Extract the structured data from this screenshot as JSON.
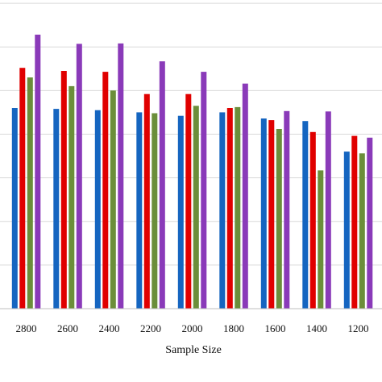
{
  "chart_data": {
    "type": "bar",
    "title": "",
    "xlabel": "Sample Size",
    "ylabel": "",
    "ylim": [
      0,
      7.5
    ],
    "grid": true,
    "legend": "none",
    "categories": [
      "2800",
      "2600",
      "2400",
      "2200",
      "2000",
      "1800",
      "1600",
      "1400",
      "1200"
    ],
    "series": [
      {
        "color": "#1565c0",
        "values": [
          4.6,
          4.58,
          4.55,
          4.5,
          4.42,
          4.5,
          4.36,
          4.3,
          3.6
        ]
      },
      {
        "color": "#e00000",
        "values": [
          5.52,
          5.45,
          5.43,
          4.92,
          4.92,
          4.6,
          4.32,
          4.05,
          3.96
        ]
      },
      {
        "color": "#6b8e3a",
        "values": [
          5.3,
          5.1,
          5.0,
          4.48,
          4.65,
          4.62,
          4.12,
          3.17,
          3.56
        ]
      },
      {
        "color": "#8a3ab9",
        "values": [
          6.28,
          6.07,
          6.08,
          5.67,
          5.43,
          5.16,
          4.53,
          4.52,
          3.92
        ]
      }
    ]
  }
}
